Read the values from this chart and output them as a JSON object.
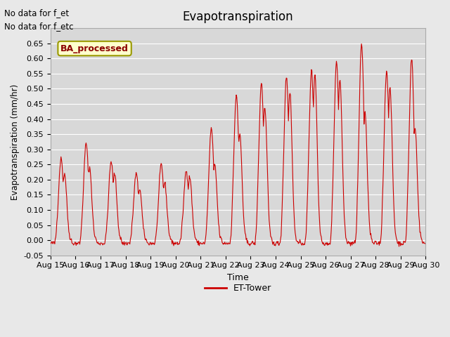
{
  "title": "Evapotranspiration",
  "ylabel": "Evapotranspiration (mm/hr)",
  "xlabel": "Time",
  "ylim": [
    -0.05,
    0.7
  ],
  "yticks": [
    -0.05,
    0.0,
    0.05,
    0.1,
    0.15,
    0.2,
    0.25,
    0.3,
    0.35,
    0.4,
    0.45,
    0.5,
    0.55,
    0.6,
    0.65
  ],
  "line_color": "#cc0000",
  "fig_bg_color": "#e8e8e8",
  "plot_bg_color": "#d8d8d8",
  "legend_label": "ET-Tower",
  "annotation1": "No data for f_et",
  "annotation2": "No data for f_etc",
  "box_label": "BA_processed",
  "x_tick_labels": [
    "Aug 15",
    "Aug 16",
    "Aug 17",
    "Aug 18",
    "Aug 19",
    "Aug 20",
    "Aug 21",
    "Aug 22",
    "Aug 23",
    "Aug 24",
    "Aug 25",
    "Aug 26",
    "Aug 27",
    "Aug 28",
    "Aug 29",
    "Aug 30"
  ],
  "num_days": 15,
  "day_peaks": [
    0.27,
    0.32,
    0.26,
    0.22,
    0.25,
    0.23,
    0.37,
    0.48,
    0.52,
    0.54,
    0.56,
    0.59,
    0.65,
    0.56,
    0.6
  ],
  "day_peaks2": [
    0.22,
    0.24,
    0.22,
    0.17,
    0.19,
    0.21,
    0.25,
    0.35,
    0.44,
    0.49,
    0.55,
    0.53,
    0.42,
    0.5,
    0.37
  ]
}
